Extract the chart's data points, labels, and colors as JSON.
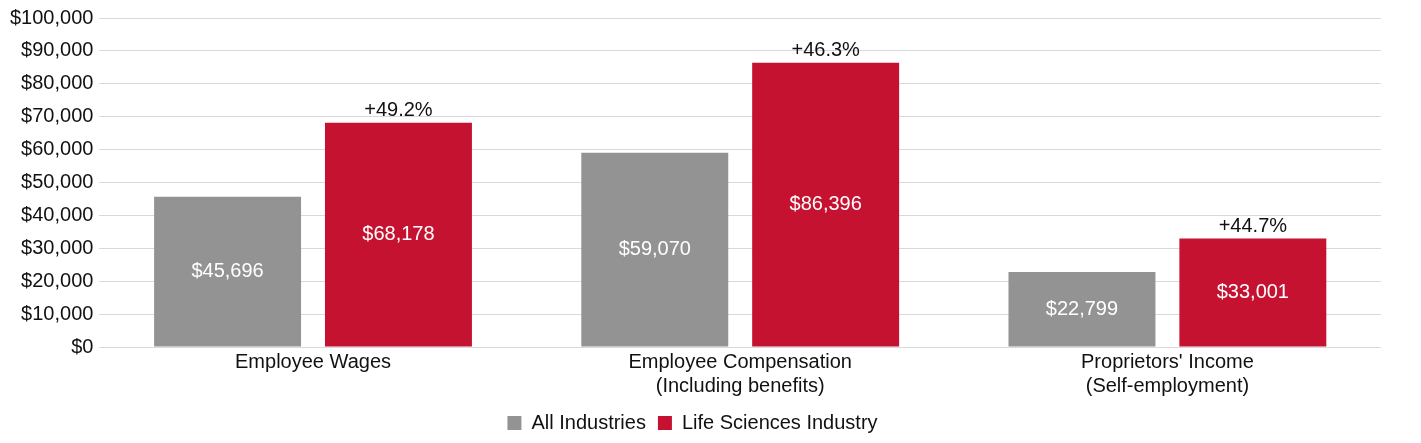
{
  "chart_data": {
    "type": "bar",
    "categories": [
      "Employee Wages",
      "Employee Compensation\n(Including benefits)",
      "Proprietors' Income\n(Self-employment)"
    ],
    "series": [
      {
        "name": "All Industries",
        "color": "#939393",
        "values": [
          45696,
          59070,
          22799
        ],
        "value_labels": [
          "$45,696",
          "$59,070",
          "$22,799"
        ]
      },
      {
        "name": "Life Sciences Industry",
        "color": "#c41230",
        "values": [
          68178,
          86396,
          33001
        ],
        "value_labels": [
          "$68,178",
          "$86,396",
          "$33,001"
        ]
      }
    ],
    "ylim": [
      0,
      100000
    ],
    "yticks": [
      {
        "value": 0,
        "label": "$0"
      },
      {
        "value": 10000,
        "label": "$10,000"
      },
      {
        "value": 20000,
        "label": "$20,000"
      },
      {
        "value": 30000,
        "label": "$30,000"
      },
      {
        "value": 40000,
        "label": "$40,000"
      },
      {
        "value": 50000,
        "label": "$50,000"
      },
      {
        "value": 60000,
        "label": "$60,000"
      },
      {
        "value": 70000,
        "label": "$70,000"
      },
      {
        "value": 80000,
        "label": "$80,000"
      },
      {
        "value": 90000,
        "label": "$90,000"
      },
      {
        "value": 100000,
        "label": "$100,000"
      }
    ],
    "grid": "y",
    "legend": "bottom",
    "annotations": [
      "+49.2%",
      "+46.3%",
      "+44.7%"
    ]
  }
}
